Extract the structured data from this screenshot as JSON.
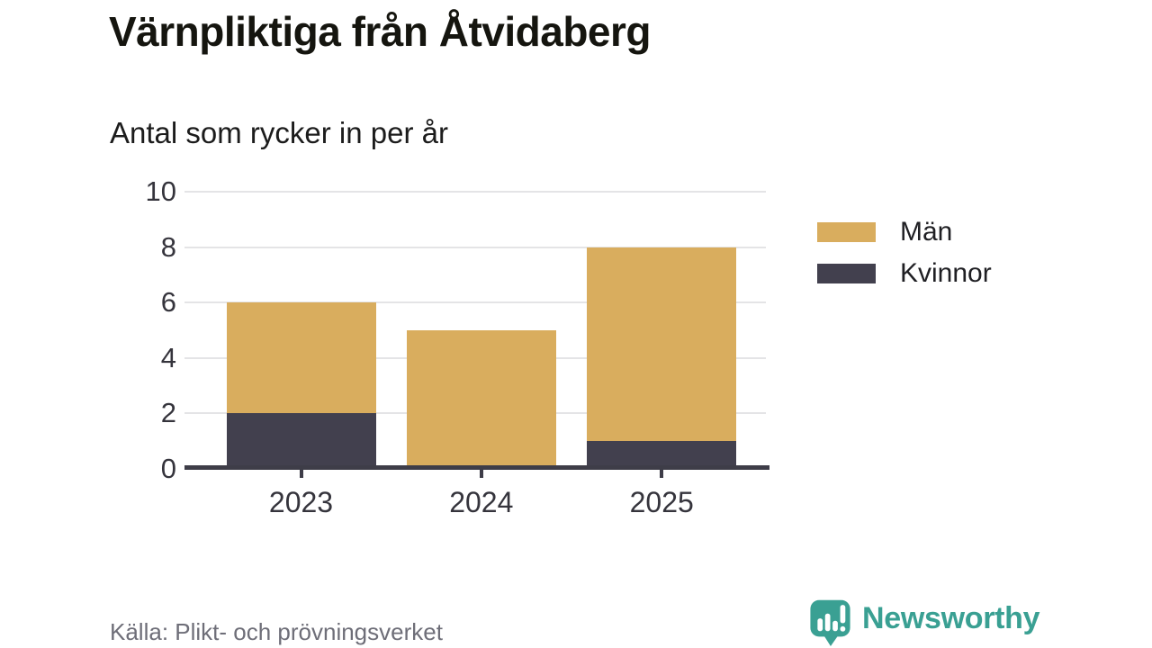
{
  "chart_data": {
    "type": "bar",
    "stacked": true,
    "title": "Värnpliktiga från Åtvidaberg",
    "subtitle": "Antal som rycker in per år",
    "categories": [
      "2023",
      "2024",
      "2025"
    ],
    "series": [
      {
        "name": "Män",
        "color": "#d9ad5e",
        "values": [
          4,
          5,
          7
        ]
      },
      {
        "name": "Kvinnor",
        "color": "#42404e",
        "values": [
          2,
          0,
          1
        ]
      }
    ],
    "stack_order_bottom_up": [
      "Kvinnor",
      "Män"
    ],
    "totals": [
      6,
      5,
      8
    ],
    "xlabel": "",
    "ylabel": "",
    "ylim": [
      0,
      10
    ],
    "yticks": [
      0,
      2,
      4,
      6,
      8,
      10
    ],
    "grid": true,
    "legend_position": "right",
    "axis_color": "#3e3d48",
    "grid_color": "#e4e4e6",
    "tick_label_color": "#35343c"
  },
  "footer": {
    "source": "Källa: Plikt- och prövningsverket",
    "brand": {
      "name": "Newsworthy",
      "color": "#3aa093"
    }
  }
}
